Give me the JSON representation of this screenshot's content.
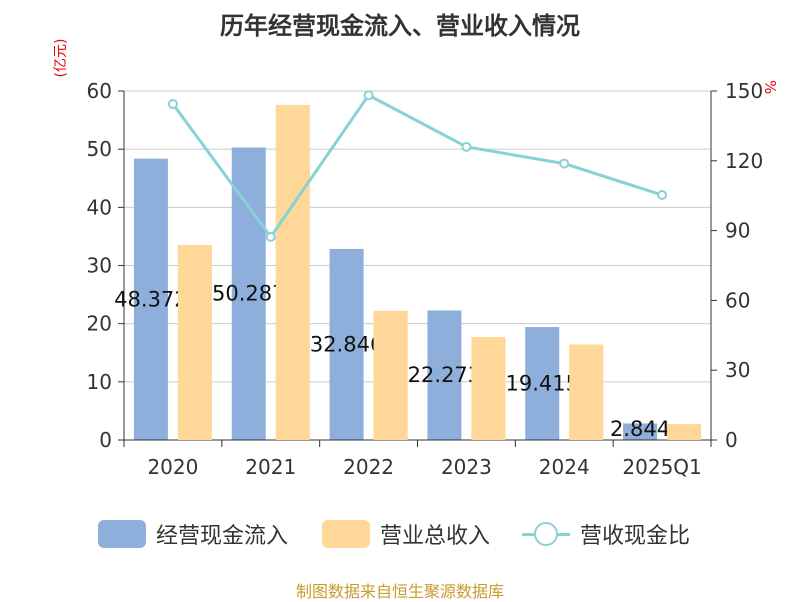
{
  "chart_data": {
    "type": "bar",
    "title": "历年经营现金流入、营业收入情况",
    "categories": [
      "2020",
      "2021",
      "2022",
      "2023",
      "2024",
      "2025Q1"
    ],
    "series": [
      {
        "name": "经营现金流入",
        "axis": "left",
        "type": "bar",
        "color": "#8eaedb",
        "values": [
          48.372,
          50.287,
          32.846,
          22.273,
          19.415,
          2.844
        ],
        "data_labels": [
          "48.372",
          "50.287",
          "32.846",
          "22.273",
          "19.415",
          "2.844"
        ]
      },
      {
        "name": "营业总收入",
        "axis": "left",
        "type": "bar",
        "color": "#ffd899",
        "values": [
          33.5,
          57.6,
          22.2,
          17.7,
          16.4,
          2.7
        ]
      },
      {
        "name": "营收现金比",
        "axis": "right",
        "type": "line",
        "color": "#88d2d6",
        "values": [
          144.4,
          87.3,
          148.2,
          126.0,
          118.8,
          105.3
        ]
      }
    ],
    "yleft": {
      "label": "(亿元)",
      "min": 0,
      "max": 60,
      "ticks": [
        "0",
        "10",
        "20",
        "30",
        "40",
        "50",
        "60"
      ]
    },
    "yright": {
      "label": "%",
      "min": 0,
      "max": 150,
      "ticks": [
        "0",
        "30",
        "60",
        "90",
        "120",
        "150"
      ]
    },
    "grid": true,
    "legend_position": "bottom",
    "source": "制图数据来自恒生聚源数据库"
  }
}
